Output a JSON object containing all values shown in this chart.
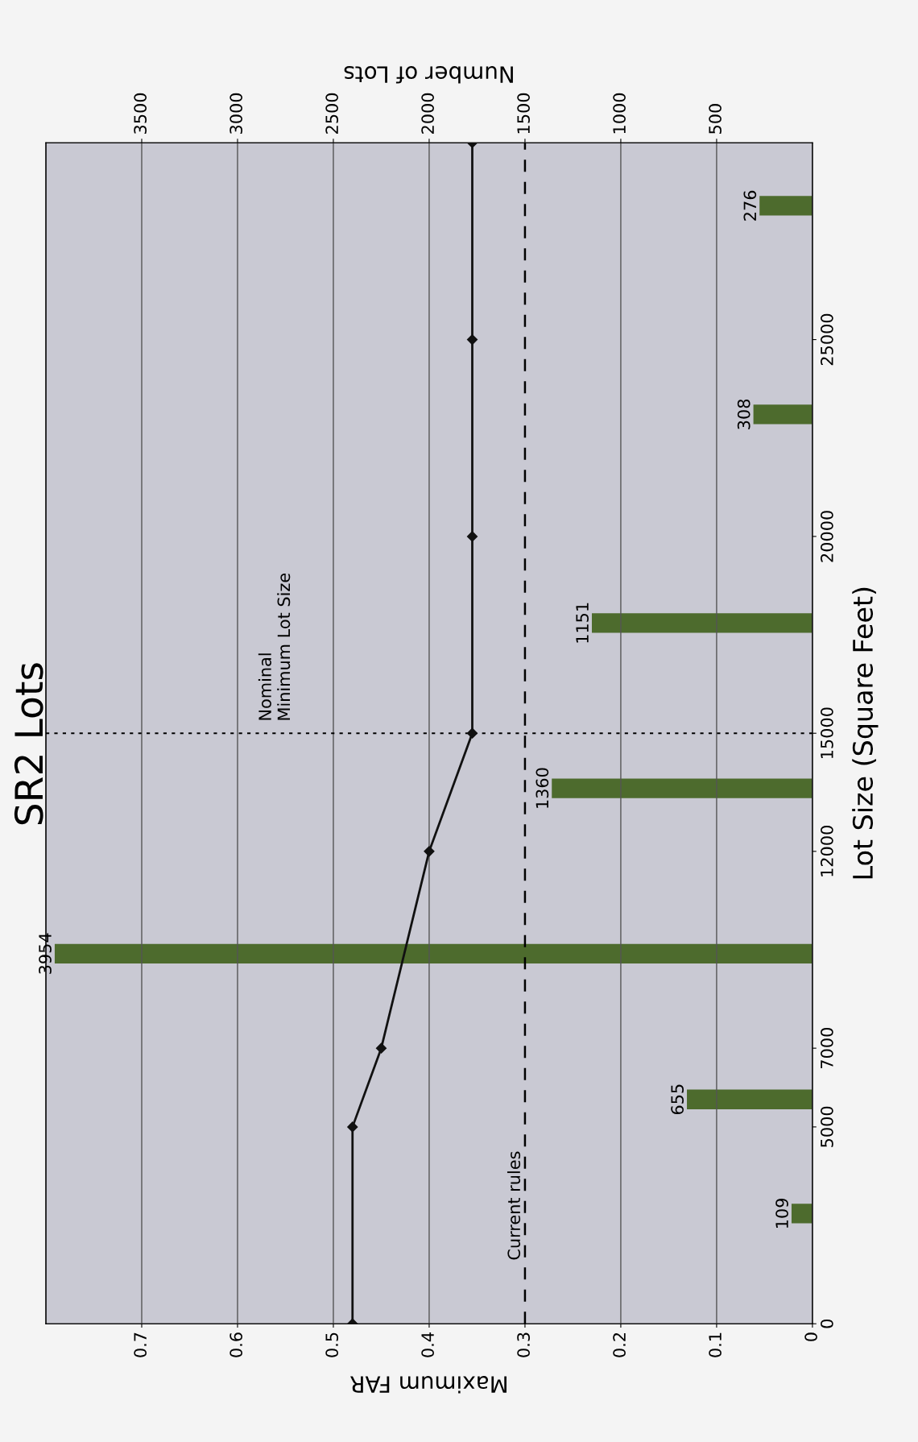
{
  "chart_data": {
    "type": "bar",
    "orientation": "horizontal",
    "title": "SR2 Lots",
    "ylabel": "Lot Size (Square Feet)",
    "xlabel": "Maximum FAR",
    "x2label": "Number of Lots",
    "ylim": [
      0,
      30000
    ],
    "yticks": [
      0,
      5000,
      7000,
      12000,
      15000,
      20000,
      25000
    ],
    "xlim": [
      0.8,
      0
    ],
    "xticks": [
      0,
      0.1,
      0.2,
      0.3,
      0.4,
      0.5,
      0.6,
      0.7
    ],
    "x2lim": [
      4000,
      0
    ],
    "x2ticks": [
      500,
      1000,
      1500,
      2000,
      2500,
      3000,
      3500
    ],
    "grid": "x",
    "series": [
      {
        "axis": "x2",
        "color": "#4d6b2d",
        "x": [
          2800,
          5700,
          9400,
          13600,
          17800,
          23100,
          28400
        ],
        "values": [
          109,
          655,
          3954,
          1360,
          1151,
          308,
          276
        ],
        "data_labels": true
      },
      {
        "type": "line",
        "color": "#111111",
        "marker": "diamond",
        "line_style": "solid",
        "x": [
          0,
          5000,
          7000,
          12000,
          15000,
          20000,
          25000,
          30000
        ],
        "values": [
          0.48,
          0.48,
          0.45,
          0.4,
          0.355,
          0.355,
          0.355,
          0.355
        ]
      }
    ],
    "ref_lines": [
      {
        "axis": "x",
        "value": 0.3,
        "label": "Current rules",
        "line_style": "dashed",
        "color": "#000000"
      },
      {
        "axis": "y",
        "value": 15000,
        "label": "Nominal\nMinimum Lot Size",
        "line_style": "dotted",
        "color": "#000000"
      }
    ]
  }
}
